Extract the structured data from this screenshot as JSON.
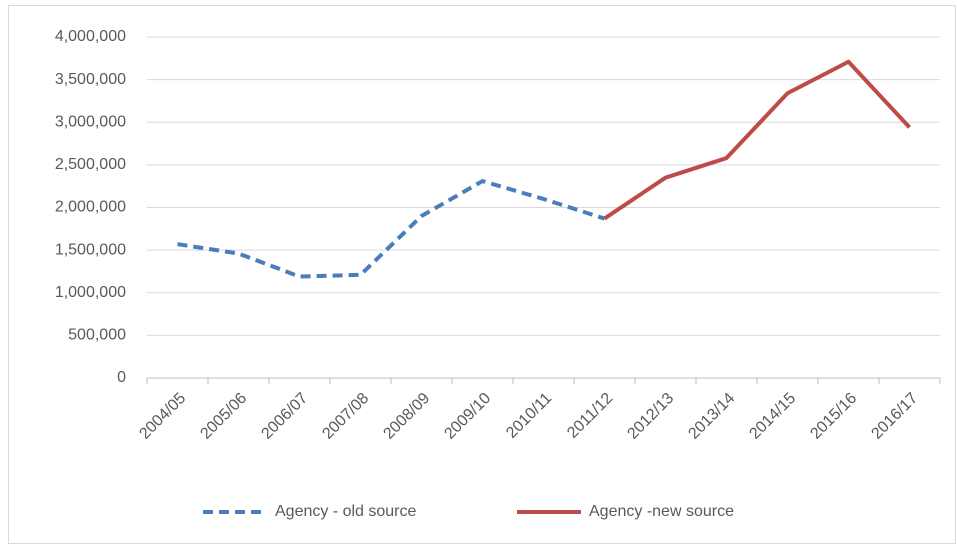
{
  "chart_data": {
    "type": "line",
    "categories": [
      "2004/05",
      "2005/06",
      "2006/07",
      "2007/08",
      "2008/09",
      "2009/10",
      "2010/11",
      "2011/12",
      "2012/13",
      "2013/14",
      "2014/15",
      "2015/16",
      "2016/17"
    ],
    "series": [
      {
        "name": "Agency - old source",
        "color": "#4a7ebb",
        "dash": true,
        "values": [
          1570000,
          1460000,
          1190000,
          1210000,
          1900000,
          2310000,
          2100000,
          1870000,
          null,
          null,
          null,
          null,
          null
        ]
      },
      {
        "name": "Agency -new source",
        "color": "#be4b48",
        "dash": false,
        "values": [
          null,
          null,
          null,
          null,
          null,
          null,
          null,
          1870000,
          2350000,
          2580000,
          3340000,
          3710000,
          2940000
        ]
      }
    ],
    "ylim": [
      0,
      4000000
    ],
    "yticks": [
      0,
      {
        "value": 500000,
        "label": "500,000"
      },
      {
        "value": 1000000,
        "label": "1,000,000"
      },
      {
        "value": 1500000,
        "label": "1,500,000"
      },
      {
        "value": 2000000,
        "label": "2,000,000"
      },
      {
        "value": 2500000,
        "label": "2,500,000"
      },
      {
        "value": 3000000,
        "label": "3,000,000"
      },
      {
        "value": 3500000,
        "label": "3,500,000"
      },
      {
        "value": 4000000,
        "label": "4,000,000"
      }
    ],
    "grid": true,
    "legend": "bottom"
  }
}
